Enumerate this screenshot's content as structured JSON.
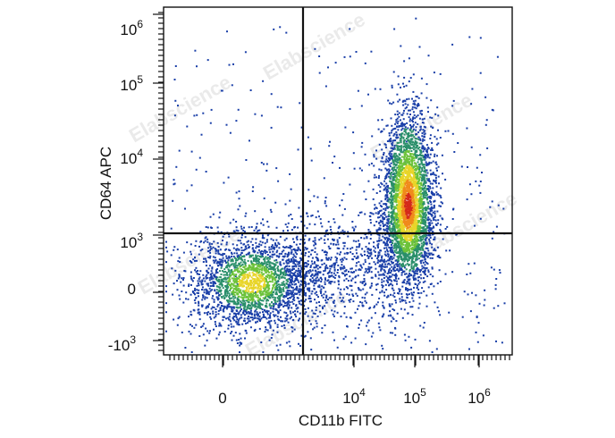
{
  "chart_data": {
    "type": "scatter",
    "subtype": "flow-cytometry-density-dot-plot",
    "xlabel": "CD11b FITC",
    "ylabel": "CD64 APC",
    "x_ticks": [
      {
        "base": "0",
        "exp": "",
        "value": 0
      },
      {
        "base": "10",
        "exp": "4",
        "value": 10000
      },
      {
        "base": "10",
        "exp": "5",
        "value": 100000
      },
      {
        "base": "10",
        "exp": "6",
        "value": 1000000
      }
    ],
    "y_ticks": [
      {
        "base": "-10",
        "exp": "3",
        "value": -1000
      },
      {
        "base": "0",
        "exp": "",
        "value": 0
      },
      {
        "base": "10",
        "exp": "3",
        "value": 1000
      },
      {
        "base": "10",
        "exp": "4",
        "value": 10000
      },
      {
        "base": "10",
        "exp": "5",
        "value": 100000
      },
      {
        "base": "10",
        "exp": "6",
        "value": 1000000
      }
    ],
    "x_scale": "biexponential",
    "y_scale": "biexponential",
    "quadrant_gate": {
      "x": 2000,
      "y": 1100
    },
    "populations": [
      {
        "x_center": 0,
        "y_center": 0,
        "density": "medium"
      },
      {
        "x_center": 90000,
        "y_center": 1500,
        "density": "high"
      }
    ],
    "density_colors": [
      "#1a3fa8",
      "#2a8f6a",
      "#6cc23a",
      "#e8d52a",
      "#f08a1c",
      "#d42a1a"
    ],
    "grid": false,
    "legend": "none"
  },
  "watermark": "Elabscience"
}
